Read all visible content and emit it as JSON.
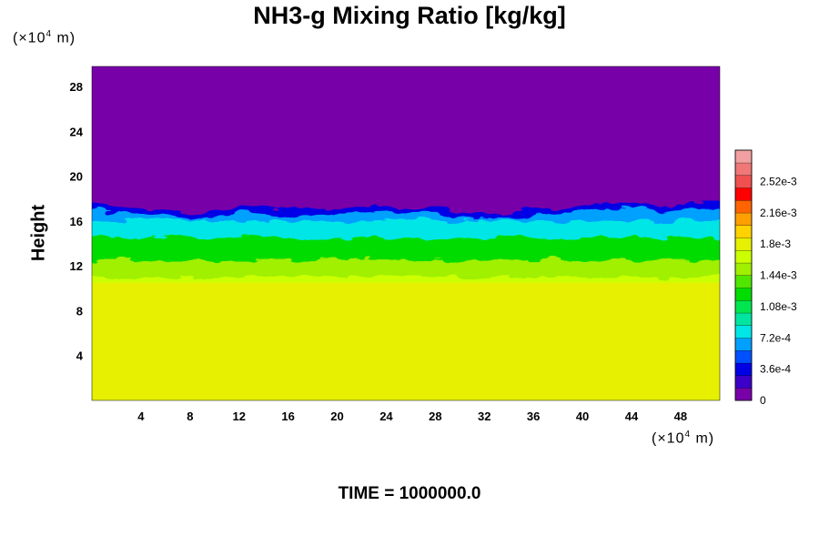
{
  "chart_data": {
    "type": "heatmap",
    "title": "NH3-g Mixing Ratio [kg/kg]",
    "ylabel": "Height",
    "x_unit": {
      "prefix": "(×10",
      "exp": "4",
      "suffix": " m)"
    },
    "y_unit": {
      "prefix": "(×10",
      "exp": "4",
      "suffix": " m)"
    },
    "xlim": [
      0,
      51.2
    ],
    "ylim": [
      0,
      29.8
    ],
    "x_ticks": [
      4,
      8,
      12,
      16,
      20,
      24,
      28,
      32,
      36,
      40,
      44,
      48
    ],
    "y_ticks": [
      4,
      8,
      12,
      16,
      20,
      24,
      28
    ],
    "time_label": "TIME = 1000000.0",
    "colorbar": {
      "min": 0,
      "max": 0.00288,
      "tick_labels": [
        "0",
        "3.6e-4",
        "7.2e-4",
        "1.08e-3",
        "1.44e-3",
        "1.8e-3",
        "2.16e-3",
        "2.52e-3"
      ],
      "tick_values": [
        0,
        0.00036,
        0.00072,
        0.00108,
        0.00144,
        0.0018,
        0.00216,
        0.00252
      ],
      "colors": [
        "#7800a8",
        "#3c00c8",
        "#0000e6",
        "#0050ff",
        "#00a0ff",
        "#00e6e6",
        "#00e6a0",
        "#00e650",
        "#00dc00",
        "#50e600",
        "#a0f000",
        "#ccff00",
        "#e6f000",
        "#ffd200",
        "#ffa000",
        "#ff6400",
        "#ff0000",
        "#f05050",
        "#f07878",
        "#f0a0a0"
      ]
    },
    "field": {
      "description_values": "mixing ratio bands in kg/kg by height",
      "upper_value": 0,
      "cloud_top_height": [
        17.5,
        17.2,
        16.7,
        16.9,
        17.3,
        17.0,
        17.1,
        17.4,
        17.2,
        16.6,
        17.0,
        17.6,
        17.4,
        17.8
      ],
      "cloud_top_x": [
        0,
        4,
        8,
        10,
        12,
        16,
        20,
        24,
        28,
        31,
        36,
        42,
        46,
        51.2
      ],
      "lower_value": 0.00185,
      "lower_top_height": 10.5,
      "bands": [
        {
          "from": 16.0,
          "value": 0.00085
        },
        {
          "from": 14.5,
          "value": 0.0012
        },
        {
          "from": 12.5,
          "value": 0.0015
        },
        {
          "from": 11.0,
          "value": 0.0017
        }
      ]
    }
  }
}
